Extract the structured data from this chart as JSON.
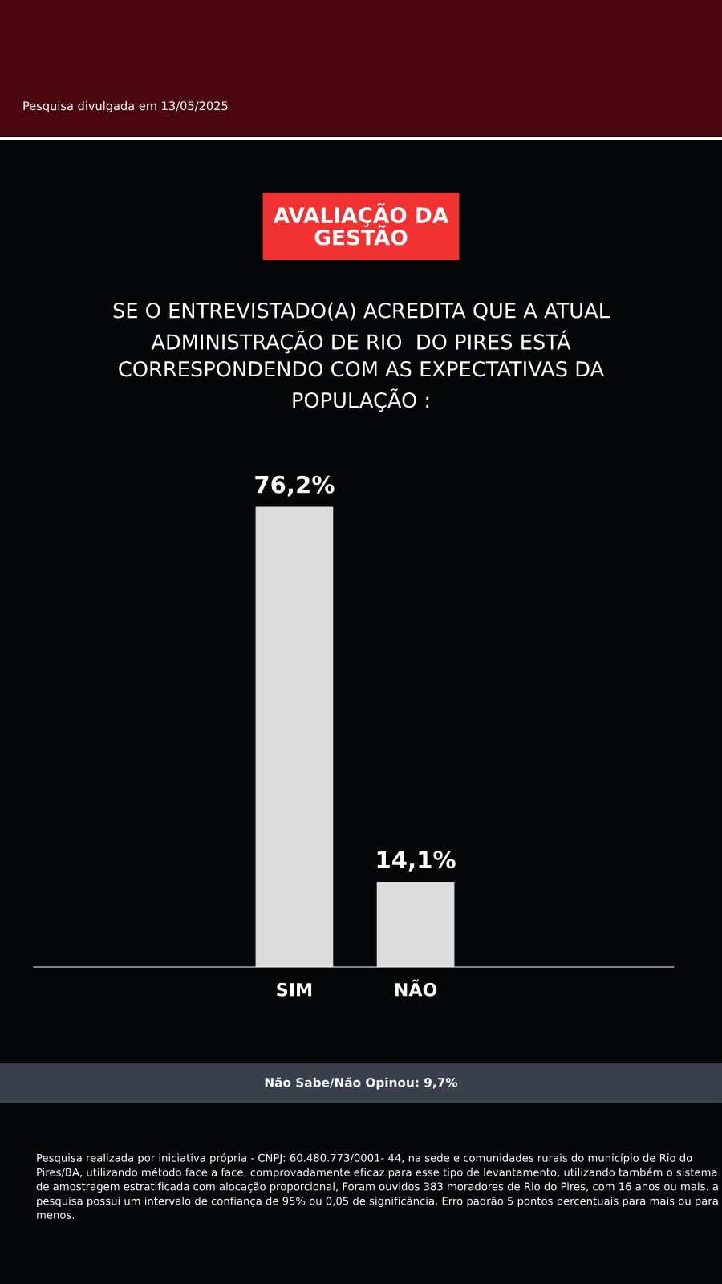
{
  "chart_data": {
    "type": "bar",
    "title": "AVALIAÇÃO DA\nGESTÃO",
    "subtitle": "SE O ENTREVISTADO(A) ACREDITA QUE A ATUAL\nADMINISTRAÇÃO DE RIO  DO PIRES ESTÁ\nCORRESPONDENDO COM AS EXPECTATIVAS DA\nPOPULAÇÃO :",
    "categories": [
      "SIM",
      "NÃO"
    ],
    "values": [
      76.2,
      14.1
    ],
    "value_labels": [
      "76,2%",
      "14,1%"
    ],
    "color": "#dcdcdc",
    "annotations": [
      "Pesquisa divulgada em 13/05/2025",
      "Não Sabe/Não Opinou: 9,7%",
      "Pesquisa realizada por iniciativa própria - CNPJ: 60.480.773/0001- 44, na sede e comunidades rurais do município de Rio do Pires/BA, utilizando método face a face, comprovadamente eficaz para esse tipo de levantamento, utilizando também o sistema de amostragem estratificada com alocação proporcional, Foram ouvidos 383 moradores de Rio do Pires, com 16 anos ou mais. a pesquisa possui um intervalo de confiança de 95% ou 0,05 de significância. Erro padrão 5 pontos percentuais para mais ou para menos."
    ],
    "grid": false,
    "legend": false
  }
}
